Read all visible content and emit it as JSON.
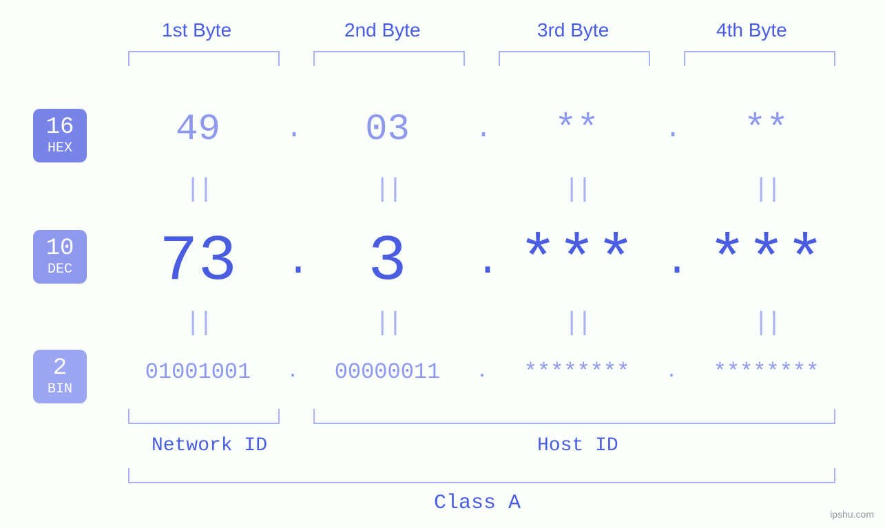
{
  "diagram_type": "infographic",
  "background_color": "#fafffc",
  "colors": {
    "primary_text": "#4a5de0",
    "secondary_text": "#8e99ee",
    "bracket": "#aab2f0",
    "badge_hex": "#7884e8",
    "badge_dec": "#8e99ee",
    "badge_bin": "#9ca6f1",
    "badge_text": "#ffffff"
  },
  "fontsizes": {
    "byte_header": 28,
    "hex_row": 54,
    "dec_row": 94,
    "bin_row": 32,
    "equals": 38,
    "section_label": 28,
    "class_label": 30,
    "badge_num": 34,
    "badge_label": 20
  },
  "byte_headers": [
    "1st Byte",
    "2nd Byte",
    "3rd Byte",
    "4th Byte"
  ],
  "bases": [
    {
      "num": "16",
      "label": "HEX"
    },
    {
      "num": "10",
      "label": "DEC"
    },
    {
      "num": "2",
      "label": "BIN"
    }
  ],
  "hex": {
    "b1": "49",
    "b2": "03",
    "b3": "**",
    "b4": "**"
  },
  "dec": {
    "b1": "73",
    "b2": "3",
    "b3": "***",
    "b4": "***"
  },
  "bin": {
    "b1": "01001001",
    "b2": "00000011",
    "b3": "********",
    "b4": "********"
  },
  "dot": ".",
  "equals": "||",
  "sections": {
    "network": "Network ID",
    "host": "Host ID"
  },
  "class_label": "Class A",
  "attribution": "ipshu.com"
}
